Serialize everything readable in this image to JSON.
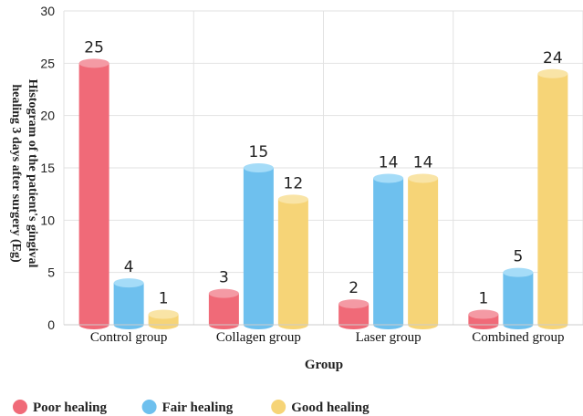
{
  "chart_data": {
    "type": "bar",
    "title": "",
    "xlabel": "Group",
    "ylabel_lines": [
      "Histogram of the patient's gingival",
      "healing 3 days after surgery (Eg)"
    ],
    "categories": [
      "Control group",
      "Collagen group",
      "Laser group",
      "Combined group"
    ],
    "series": [
      {
        "name": "Poor healing",
        "values": [
          25,
          3,
          2,
          1
        ],
        "color": "#f06a78",
        "top_color": "#f49aa4"
      },
      {
        "name": "Fair healing",
        "values": [
          4,
          15,
          14,
          5
        ],
        "color": "#6ec0ee",
        "top_color": "#a5dcf8"
      },
      {
        "name": "Good healing",
        "values": [
          1,
          12,
          14,
          24
        ],
        "color": "#f6d477",
        "top_color": "#f9e4a6"
      }
    ],
    "ylim": [
      0,
      30
    ],
    "yticks": [
      0,
      5,
      10,
      15,
      20,
      25,
      30
    ],
    "grid": true,
    "legend_position": "bottom"
  }
}
